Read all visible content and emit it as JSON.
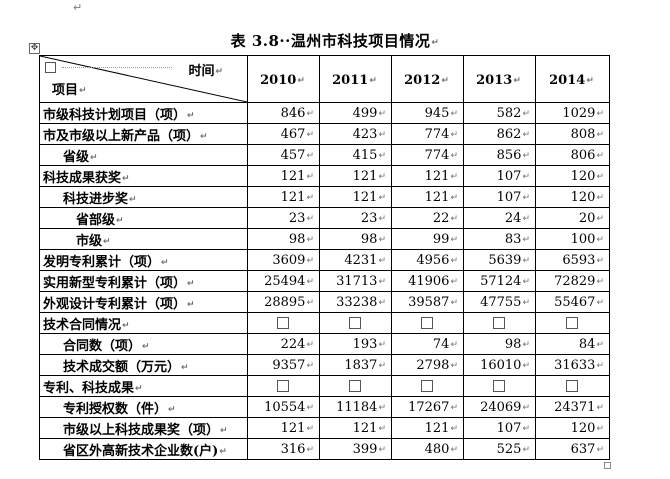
{
  "document": {
    "title": "表 3.8··温州市科技项目情况",
    "paragraph_mark": "↵",
    "move_handle_glyph": "✥"
  },
  "table": {
    "header": {
      "top_right_label": "时间",
      "bottom_left_label": "项目",
      "years": [
        "2010",
        "2011",
        "2012",
        "2013",
        "2014"
      ]
    },
    "rows": [
      {
        "label": "市级科技计划项目（项）",
        "level": 0,
        "values": [
          "846",
          "499",
          "945",
          "582",
          "1029"
        ]
      },
      {
        "label": "市及市级以上新产品（项）",
        "level": 0,
        "values": [
          "467",
          "423",
          "774",
          "862",
          "808"
        ]
      },
      {
        "label": "省级",
        "level": 1,
        "values": [
          "457",
          "415",
          "774",
          "856",
          "806"
        ]
      },
      {
        "label": "科技成果获奖",
        "level": 0,
        "values": [
          "121",
          "121",
          "121",
          "107",
          "120"
        ]
      },
      {
        "label": "科技进步奖",
        "level": 1,
        "values": [
          "121",
          "121",
          "121",
          "107",
          "120"
        ]
      },
      {
        "label": "省部级",
        "level": 2,
        "values": [
          "23",
          "23",
          "22",
          "24",
          "20"
        ]
      },
      {
        "label": "市级",
        "level": 2,
        "values": [
          "98",
          "98",
          "99",
          "83",
          "100"
        ]
      },
      {
        "label": "发明专利累计（项）",
        "level": 0,
        "values": [
          "3609",
          "4231",
          "4956",
          "5639",
          "6593"
        ]
      },
      {
        "label": "实用新型专利累计（项）",
        "level": 0,
        "values": [
          "25494",
          "31713",
          "41906",
          "57124",
          "72829"
        ]
      },
      {
        "label": "外观设计专利累计（项）",
        "level": 0,
        "values": [
          "28895",
          "33238",
          "39587",
          "47755",
          "55467"
        ]
      },
      {
        "label": "技术合同情况",
        "level": 0,
        "values": [
          "",
          "",
          "",
          "",
          ""
        ]
      },
      {
        "label": "合同数（项）",
        "level": 1,
        "values": [
          "224",
          "193",
          "74",
          "98",
          "84"
        ]
      },
      {
        "label": "技术成交额（万元）",
        "level": 1,
        "values": [
          "9357",
          "1837",
          "2798",
          "16010",
          "31633"
        ]
      },
      {
        "label": "专利、科技成果",
        "level": 0,
        "values": [
          "",
          "",
          "",
          "",
          ""
        ]
      },
      {
        "label": "专利授权数（件）",
        "level": 1,
        "values": [
          "10554",
          "11184",
          "17267",
          "24069",
          "24371"
        ]
      },
      {
        "label": "市级以上科技成果奖（项）",
        "level": 1,
        "values": [
          "121",
          "121",
          "121",
          "107",
          "120"
        ]
      },
      {
        "label": "省区外高新技术企业数(户)",
        "level": 1,
        "values": [
          "316",
          "399",
          "480",
          "525",
          "637"
        ]
      }
    ]
  }
}
